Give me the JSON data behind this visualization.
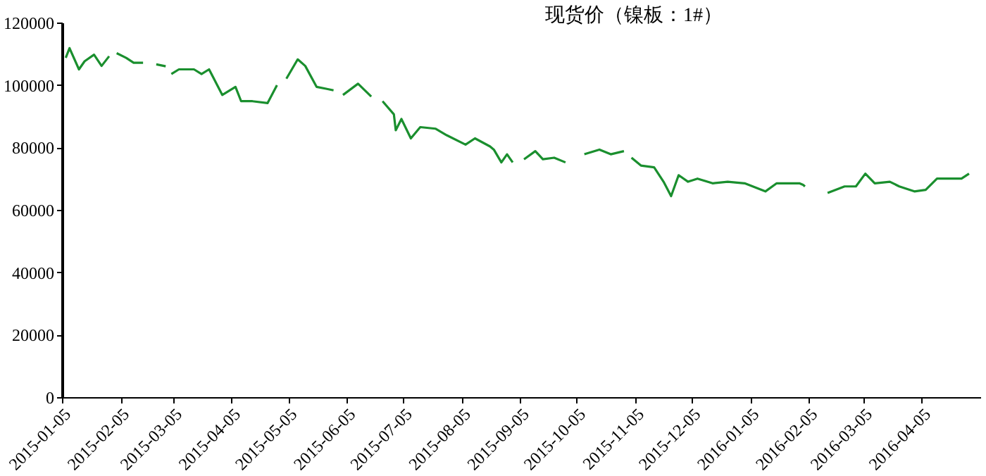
{
  "chart_data": {
    "type": "line",
    "title": "现货价（镍板：1#）",
    "x": [
      "2015-01-07",
      "2015-01-09",
      "2015-01-14",
      "2015-01-17",
      "2015-01-22",
      "2015-01-26",
      "2015-01-30",
      "2015-02-01",
      "2015-02-03",
      "2015-02-08",
      "2015-02-12",
      "2015-02-17",
      "2015-02-21",
      "2015-02-24",
      "2015-03-01",
      "2015-03-02",
      "2015-03-04",
      "2015-03-08",
      "2015-03-16",
      "2015-03-20",
      "2015-03-24",
      "2015-03-31",
      "2015-04-07",
      "2015-04-10",
      "2015-04-16",
      "2015-04-24",
      "2015-04-29",
      "2015-05-01",
      "2015-05-04",
      "2015-05-10",
      "2015-05-14",
      "2015-05-20",
      "2015-05-25",
      "2015-05-29",
      "2015-05-31",
      "2015-06-03",
      "2015-06-11",
      "2015-06-18",
      "2015-06-21",
      "2015-06-24",
      "2015-06-30",
      "2015-07-01",
      "2015-07-04",
      "2015-07-09",
      "2015-07-14",
      "2015-07-22",
      "2015-07-28",
      "2015-08-07",
      "2015-08-12",
      "2015-08-20",
      "2015-08-22",
      "2015-08-26",
      "2015-08-29",
      "2015-09-01",
      "2015-09-04",
      "2015-09-07",
      "2015-09-13",
      "2015-09-17",
      "2015-09-23",
      "2015-09-29",
      "2015-10-04",
      "2015-10-09",
      "2015-10-17",
      "2015-10-23",
      "2015-10-30",
      "2015-11-01",
      "2015-11-03",
      "2015-11-08",
      "2015-11-15",
      "2015-11-20",
      "2015-11-24",
      "2015-11-28",
      "2015-12-03",
      "2015-12-08",
      "2015-12-16",
      "2015-12-24",
      "2016-01-02",
      "2016-01-13",
      "2016-01-19",
      "2016-01-29",
      "2016-01-31",
      "2016-02-02",
      "2016-02-03",
      "2016-02-07",
      "2016-02-15",
      "2016-02-24",
      "2016-03-01",
      "2016-03-06",
      "2016-03-11",
      "2016-03-19",
      "2016-03-24",
      "2016-04-01",
      "2016-04-07",
      "2016-04-13",
      "2016-04-20",
      "2016-04-26",
      "2016-04-30"
    ],
    "series": [
      {
        "color": "#1a8f2e",
        "values": [
          108700,
          111800,
          105000,
          107600,
          109700,
          106100,
          109200,
          null,
          110200,
          108700,
          107100,
          107100,
          null,
          106600,
          106000,
          null,
          103500,
          105000,
          105000,
          103500,
          105000,
          96800,
          99400,
          94800,
          94800,
          94200,
          99900,
          null,
          102000,
          108200,
          106100,
          99400,
          98800,
          98300,
          null,
          96800,
          100400,
          96300,
          null,
          94800,
          90600,
          85500,
          89100,
          82900,
          86500,
          86000,
          83900,
          80900,
          82900,
          80300,
          79300,
          75200,
          77800,
          75200,
          null,
          76200,
          78800,
          76200,
          76700,
          75200,
          null,
          77800,
          79300,
          77800,
          78800,
          null,
          76700,
          74200,
          73600,
          69000,
          64400,
          71100,
          69000,
          70000,
          68500,
          69000,
          68500,
          65900,
          68500,
          68500,
          68500,
          68000,
          67500,
          null,
          65400,
          67500,
          67500,
          71600,
          68500,
          69000,
          67500,
          65900,
          66400,
          70000,
          70000,
          70000,
          71600
        ]
      }
    ],
    "xlim": [
      "2015-01-05",
      "2016-05-06"
    ],
    "xticks": [
      "2015-01-05",
      "2015-02-05",
      "2015-03-05",
      "2015-04-05",
      "2015-05-05",
      "2015-06-05",
      "2015-07-05",
      "2015-08-05",
      "2015-09-05",
      "2015-10-05",
      "2015-11-05",
      "2015-12-05",
      "2016-01-05",
      "2016-02-05",
      "2016-03-05",
      "2016-04-05"
    ],
    "ylim": [
      0,
      120000
    ],
    "yticks": [
      0,
      20000,
      40000,
      60000,
      80000,
      100000,
      120000
    ],
    "grid": false,
    "legend": false,
    "marker": "none",
    "line_style": "solid"
  }
}
